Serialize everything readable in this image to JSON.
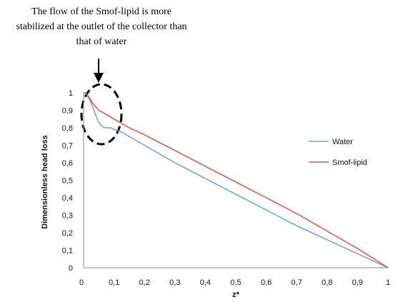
{
  "chart_data": {
    "type": "line",
    "annotation": [
      "The flow of the Smof-lipid is more",
      "stabilized at the outlet of the collector than",
      "that of water"
    ],
    "xlabel": "z*",
    "ylabel": "Dimensionless head loss",
    "xlim": [
      0,
      1
    ],
    "ylim": [
      0,
      1
    ],
    "x_ticks": [
      "0",
      "0,1",
      "0,2",
      "0,3",
      "0,4",
      "0,5",
      "0,6",
      "0,7",
      "0,8",
      "0,9",
      "1"
    ],
    "y_ticks": [
      "0",
      "0,1",
      "0,2",
      "0,3",
      "0,4",
      "0,5",
      "0,6",
      "0,7",
      "0,8",
      "0,9",
      "1"
    ],
    "grid": false,
    "legend_position": "right",
    "series": [
      {
        "name": "Water",
        "color": "#6f9fd8",
        "x": [
          0,
          0.005,
          0.01,
          0.02,
          0.03,
          0.04,
          0.05,
          0.06,
          0.07,
          0.08,
          0.09,
          0.1,
          0.12,
          0.15,
          0.2,
          0.3,
          0.4,
          0.5,
          0.6,
          0.7,
          0.8,
          0.9,
          1.0
        ],
        "y": [
          1.0,
          1.0,
          0.99,
          0.96,
          0.92,
          0.87,
          0.83,
          0.81,
          0.8,
          0.8,
          0.8,
          0.79,
          0.78,
          0.75,
          0.7,
          0.6,
          0.51,
          0.42,
          0.33,
          0.24,
          0.16,
          0.08,
          0.0
        ]
      },
      {
        "name": "Smof-lipid",
        "color": "#d9534f",
        "x": [
          0,
          0.005,
          0.01,
          0.02,
          0.03,
          0.04,
          0.05,
          0.06,
          0.08,
          0.1,
          0.15,
          0.2,
          0.3,
          0.4,
          0.5,
          0.6,
          0.7,
          0.8,
          0.9,
          1.0
        ],
        "y": [
          1.0,
          1.0,
          0.99,
          0.97,
          0.94,
          0.92,
          0.9,
          0.89,
          0.87,
          0.85,
          0.8,
          0.76,
          0.67,
          0.58,
          0.49,
          0.4,
          0.31,
          0.21,
          0.11,
          0.0
        ]
      }
    ]
  }
}
